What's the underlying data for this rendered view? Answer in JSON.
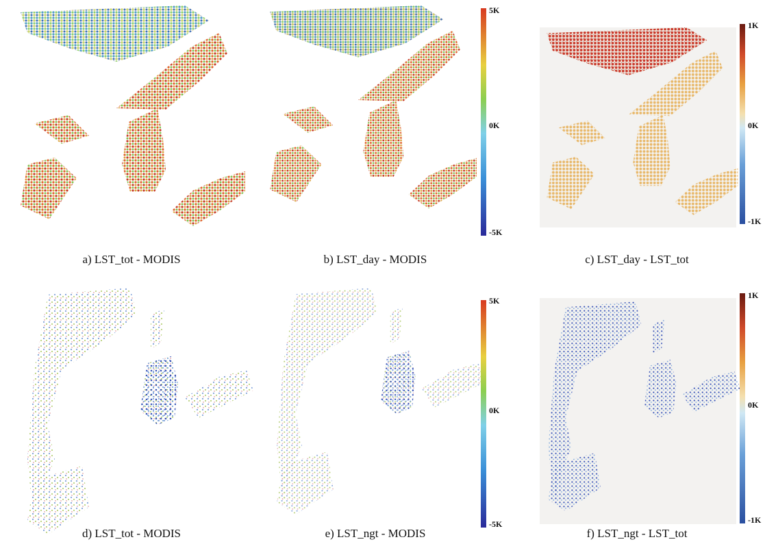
{
  "panels": [
    {
      "caption": "a) LST_tot - MODIS"
    },
    {
      "caption": "b) LST_day - MODIS"
    },
    {
      "caption": "c) LST_day - LST_tot"
    },
    {
      "caption": "d) LST_tot - MODIS"
    },
    {
      "caption": "e) LST_ngt - MODIS"
    },
    {
      "caption": "f) LST_ngt - LST_tot"
    }
  ],
  "colorbars": [
    {
      "labels": [
        "5K",
        "0K",
        "-5K"
      ]
    },
    {
      "labels": [
        "1K",
        "0K",
        "-1K"
      ]
    },
    {
      "labels": [
        "5K",
        "0K",
        "-5K"
      ]
    },
    {
      "labels": [
        "1K",
        "0K",
        "-1K"
      ]
    }
  ]
}
